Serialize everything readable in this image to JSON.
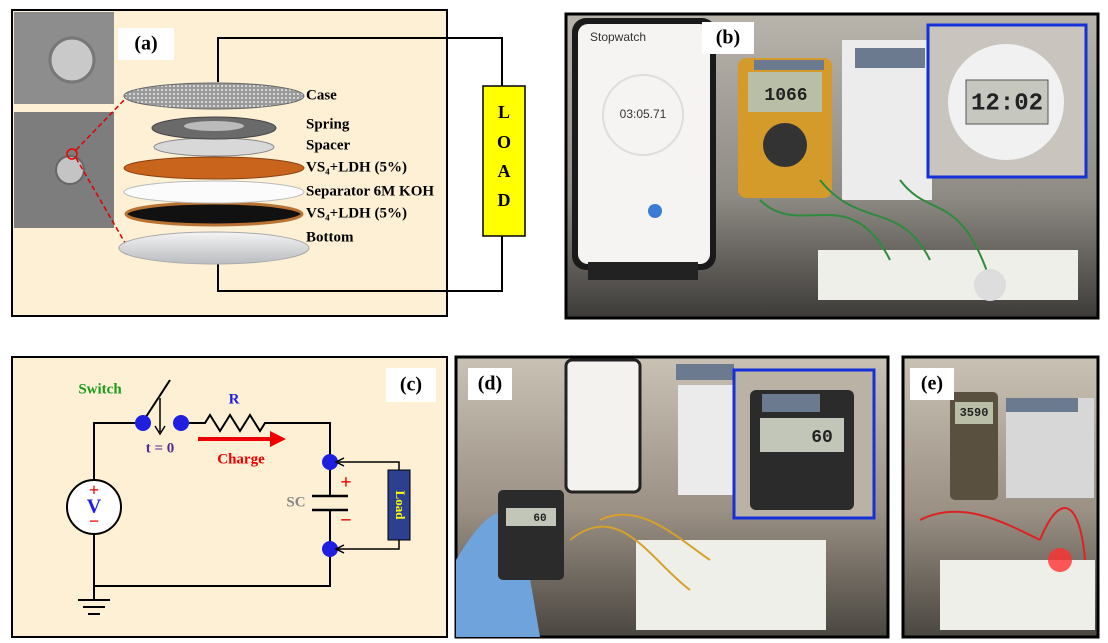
{
  "panels": {
    "a": {
      "label": "(a)",
      "layers": [
        "Case",
        "Spring",
        "Spacer",
        "VS₄+LDH (5%)",
        "Separator 6M KOH",
        "VS₄+LDH (5%)",
        "Bottom"
      ],
      "load": [
        "L",
        "O",
        "A",
        "D"
      ]
    },
    "b": {
      "label": "(b)",
      "photo_texts": [
        "Stopwatch",
        "03:05.71",
        "1066",
        "12:02"
      ]
    },
    "c": {
      "label": "(c)",
      "switch": "Switch",
      "resistor": "R",
      "time": "t = 0",
      "charge": "Charge",
      "source": "V",
      "source_plus": "+",
      "source_minus": "−",
      "capacitor": "SC",
      "cap_plus": "+",
      "cap_minus": "−",
      "load": "Load"
    },
    "d": {
      "label": "(d)",
      "photo_texts": [
        "60",
        "60"
      ]
    },
    "e": {
      "label": "(e)",
      "photo_texts": [
        "3590"
      ]
    }
  }
}
